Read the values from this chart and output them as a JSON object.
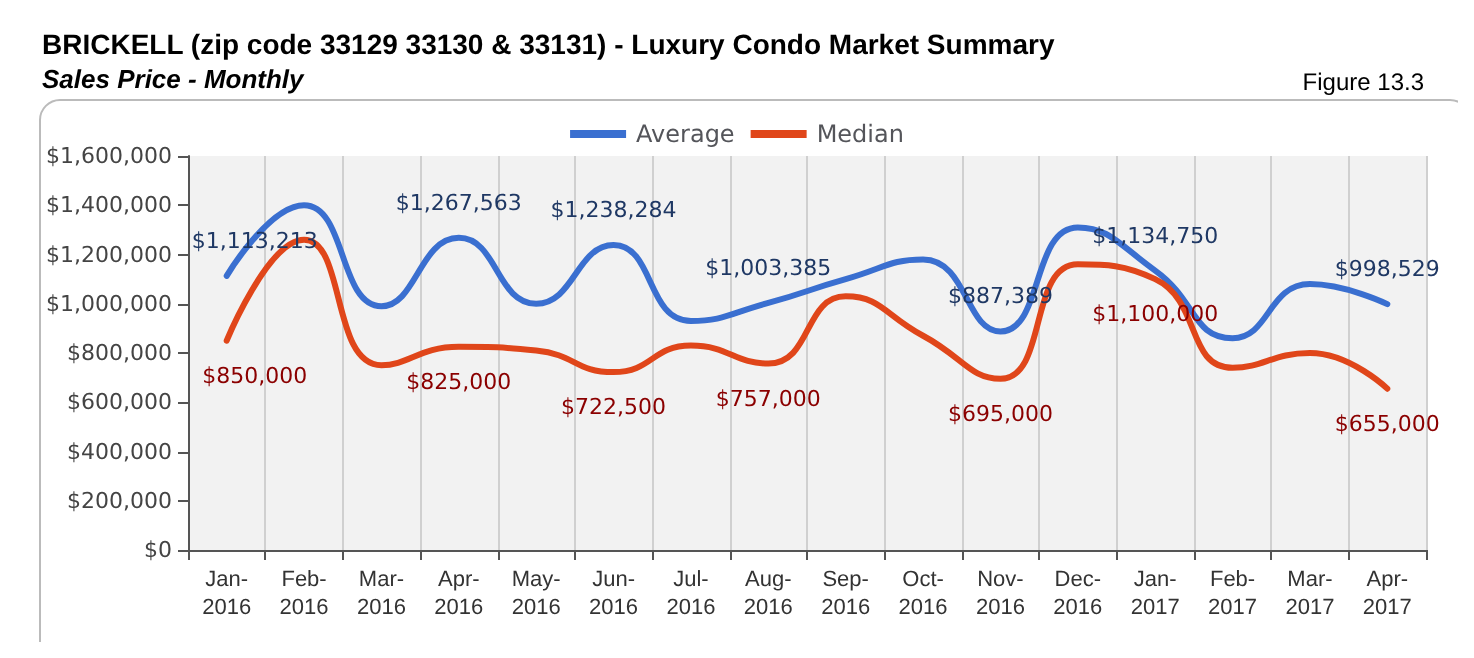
{
  "chart_data": {
    "type": "line",
    "title": "BRICKELL (zip code 33129 33130 & 33131) - Luxury Condo Market Summary",
    "subtitle": "Sales Price - Monthly",
    "annotations": [
      "Figure 13.3"
    ],
    "categories": [
      "Jan-2016",
      "Feb-2016",
      "Mar-2016",
      "Apr-2016",
      "May-2016",
      "Jun-2016",
      "Jul-2016",
      "Aug-2016",
      "Sep-2016",
      "Oct-2016",
      "Nov-2016",
      "Dec-2016",
      "Jan-2017",
      "Feb-2017",
      "Mar-2017",
      "Apr-2017"
    ],
    "series": [
      {
        "name": "Average",
        "color": "#3a6fd0",
        "values": [
          1113213,
          1400000,
          990000,
          1267563,
          1000000,
          1238284,
          930000,
          1003385,
          1100000,
          1180000,
          887389,
          1310000,
          1134750,
          860000,
          1080000,
          998529
        ],
        "value_labels": [
          "$1,113,213",
          null,
          null,
          "$1,267,563",
          null,
          "$1,238,284",
          null,
          "$1,003,385",
          null,
          null,
          "$887,389",
          null,
          "$1,134,750",
          null,
          null,
          "$998,529"
        ]
      },
      {
        "name": "Median",
        "color": "#e0461a",
        "values": [
          850000,
          1260000,
          750000,
          825000,
          810000,
          722500,
          830000,
          757000,
          1030000,
          870000,
          695000,
          1160000,
          1100000,
          740000,
          800000,
          655000
        ],
        "value_labels": [
          "$850,000",
          null,
          null,
          "$825,000",
          null,
          "$722,500",
          null,
          "$757,000",
          null,
          null,
          "$695,000",
          null,
          "$1,100,000",
          null,
          null,
          "$655,000"
        ]
      }
    ],
    "ylim": [
      0,
      1600000
    ],
    "yticks": [
      {
        "value": 0,
        "label": "$0"
      },
      {
        "value": 200000,
        "label": "$200,000"
      },
      {
        "value": 400000,
        "label": "$400,000"
      },
      {
        "value": 600000,
        "label": "$600,000"
      },
      {
        "value": 800000,
        "label": "$800,000"
      },
      {
        "value": 1000000,
        "label": "$1,000,000"
      },
      {
        "value": 1200000,
        "label": "$1,200,000"
      },
      {
        "value": 1400000,
        "label": "$1,400,000"
      },
      {
        "value": 1600000,
        "label": "$1,600,000"
      }
    ],
    "grid": "x",
    "legend": "top",
    "marker": "none",
    "line_style": "solid"
  }
}
